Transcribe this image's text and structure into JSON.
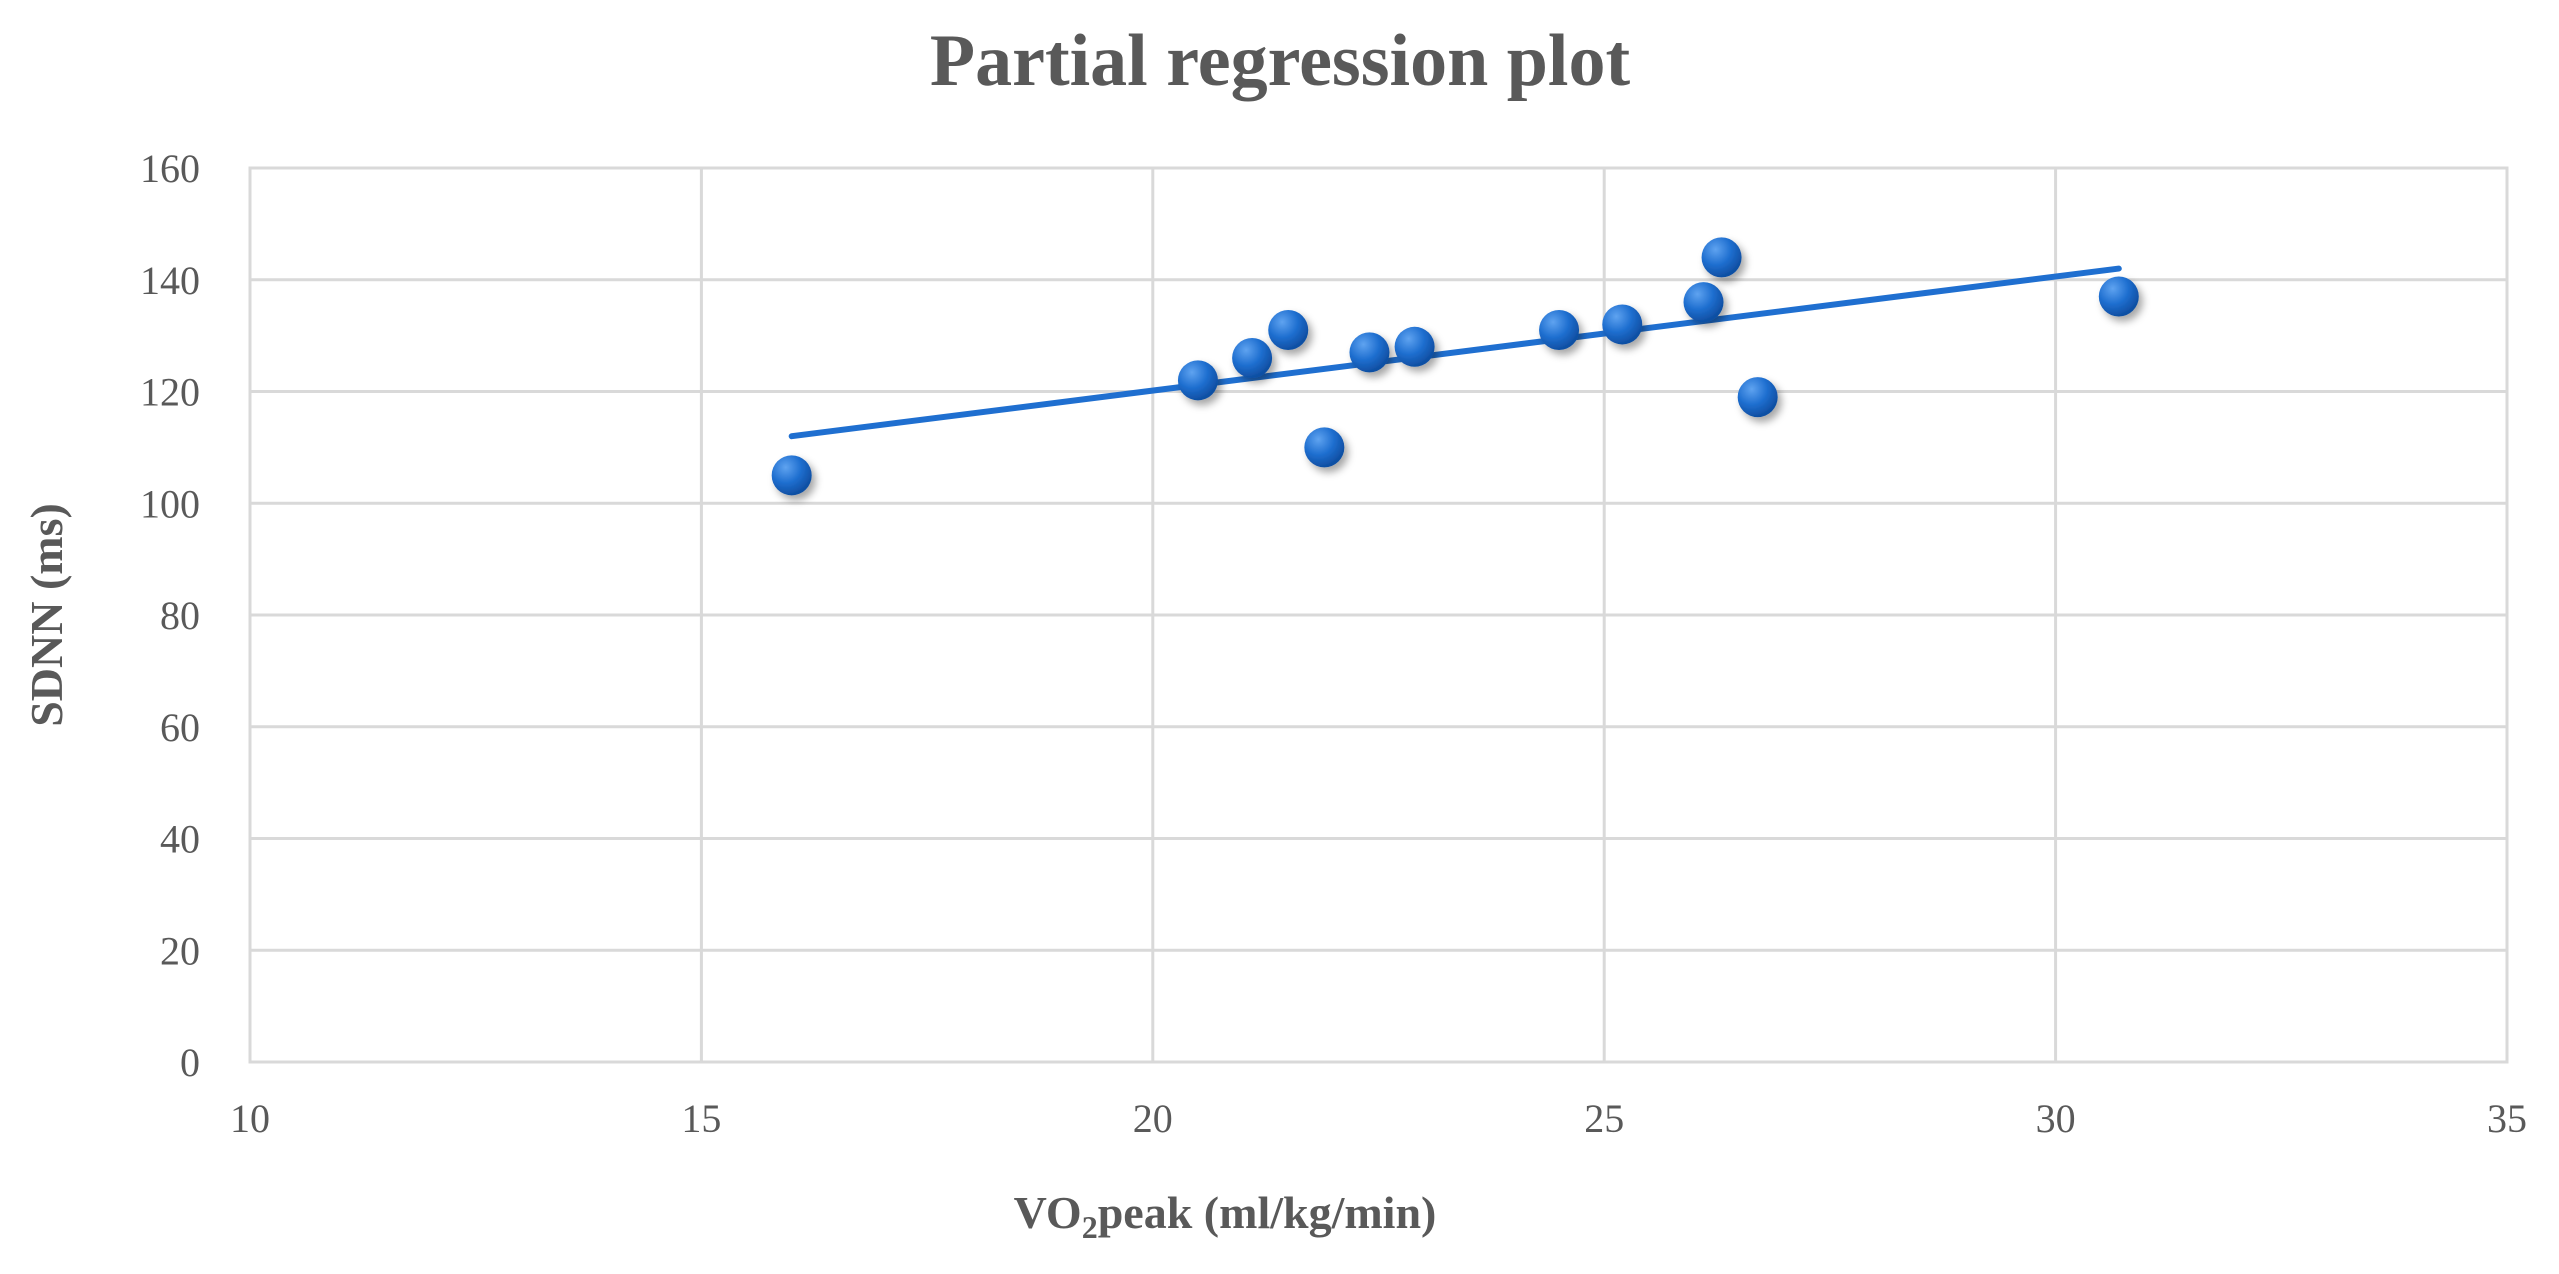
{
  "chart_data": {
    "type": "scatter",
    "title": "Partial regression plot",
    "xlabel_main": "VO",
    "xlabel_sub": "2",
    "xlabel_rest": "peak (ml/kg/min)",
    "ylabel": "SDNN (ms)",
    "xlim": [
      10,
      35
    ],
    "ylim": [
      0,
      160
    ],
    "xticks": [
      10,
      15,
      20,
      25,
      30,
      35
    ],
    "yticks": [
      0,
      20,
      40,
      60,
      80,
      100,
      120,
      140,
      160
    ],
    "grid": true,
    "series": [
      {
        "name": "SDNN",
        "color": "#1f6fd0",
        "points": [
          {
            "x": 16.0,
            "y": 105
          },
          {
            "x": 20.5,
            "y": 122
          },
          {
            "x": 21.1,
            "y": 126
          },
          {
            "x": 21.5,
            "y": 131
          },
          {
            "x": 21.9,
            "y": 110
          },
          {
            "x": 22.4,
            "y": 127
          },
          {
            "x": 22.9,
            "y": 128
          },
          {
            "x": 24.5,
            "y": 131
          },
          {
            "x": 25.2,
            "y": 132
          },
          {
            "x": 26.1,
            "y": 136
          },
          {
            "x": 26.3,
            "y": 144
          },
          {
            "x": 26.7,
            "y": 119
          },
          {
            "x": 30.7,
            "y": 137
          }
        ]
      }
    ],
    "trendline": {
      "color": "#1f6fd0",
      "x_start": 16.0,
      "y_start": 112,
      "x_end": 30.7,
      "y_end": 142
    }
  }
}
